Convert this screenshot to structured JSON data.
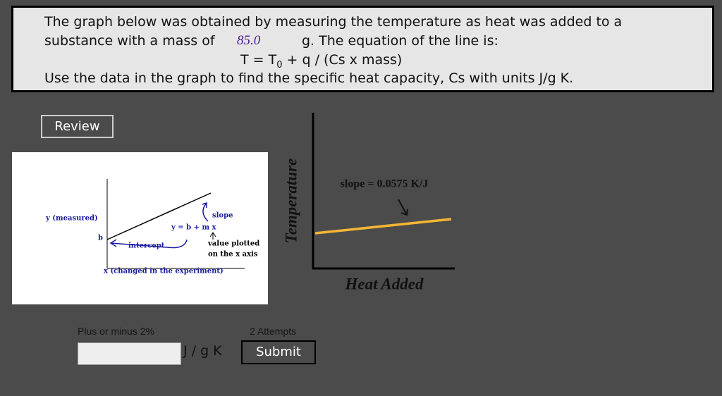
{
  "question": {
    "line1": "The graph below was obtained by measuring the temperature as heat was added to a",
    "line2_before": "substance with a mass of",
    "mass": "85.0",
    "line2_after": "g.  The equation of the line is:",
    "equation_lhs": "T = T",
    "equation_sub": "0",
    "equation_rhs": "+ q / (Cs x mass)",
    "line4": "Use the data in the graph to find the specific heat capacity, Cs with units J/g K."
  },
  "review_button": "Review",
  "diagram": {
    "y_label": "y (measured)",
    "b": "b",
    "slope": "slope",
    "equation": "y = b + m x",
    "intercept": "intercept",
    "value_line1": "value plotted",
    "value_line2": "on the x axis",
    "x_label": "x (changed in the experiment)"
  },
  "graph": {
    "y_axis": "Temperature",
    "x_axis": "Heat Added",
    "slope_label": "slope = 0.0575 K/J"
  },
  "answer": {
    "tolerance": "Plus or minus 2%",
    "attempts": "2 Attempts",
    "units": "J / g K",
    "submit": "Submit"
  }
}
